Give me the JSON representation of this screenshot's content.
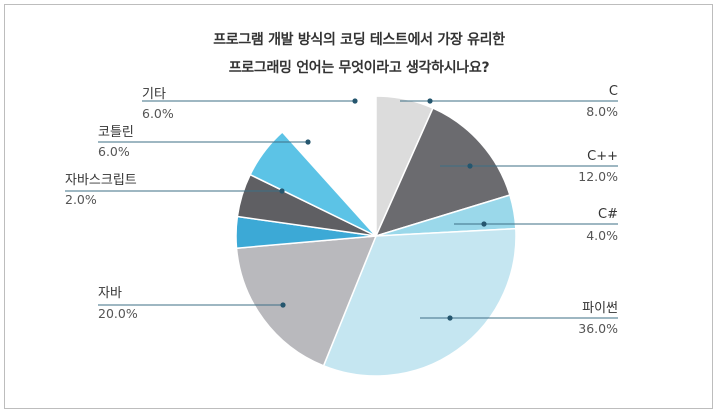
{
  "chart_data": {
    "type": "pie",
    "title": "프로그램 개발 방식의 코딩 테스트에서 가장 유리한",
    "subtitle": "프로그래밍 언어는 무엇이라고 생각하시나요?",
    "slices": [
      {
        "label": "C",
        "value": 8.0,
        "value_label": "8.0%",
        "color": "#dcdcdc"
      },
      {
        "label": "C++",
        "value": 12.0,
        "value_label": "12.0%",
        "color": "#6b6b6f"
      },
      {
        "label": "C#",
        "value": 4.0,
        "value_label": "4.0%",
        "color": "#9ad8ea"
      },
      {
        "label": "파이썬",
        "value": 36.0,
        "value_label": "36.0%",
        "color": "#c5e6f1"
      },
      {
        "label": "자바",
        "value": 20.0,
        "value_label": "20.0%",
        "color": "#b9b9bd"
      },
      {
        "label": "자바스크립트",
        "value": 2.0,
        "value_label": "2.0%",
        "color": "#3ca9d6"
      },
      {
        "label": "코틀린",
        "value": 6.0,
        "value_label": "6.0%",
        "color": "#5f5f63"
      },
      {
        "label": "기타",
        "value": 6.0,
        "value_label": "6.0%",
        "color": "#5cc3e6"
      }
    ],
    "legend": "none"
  }
}
